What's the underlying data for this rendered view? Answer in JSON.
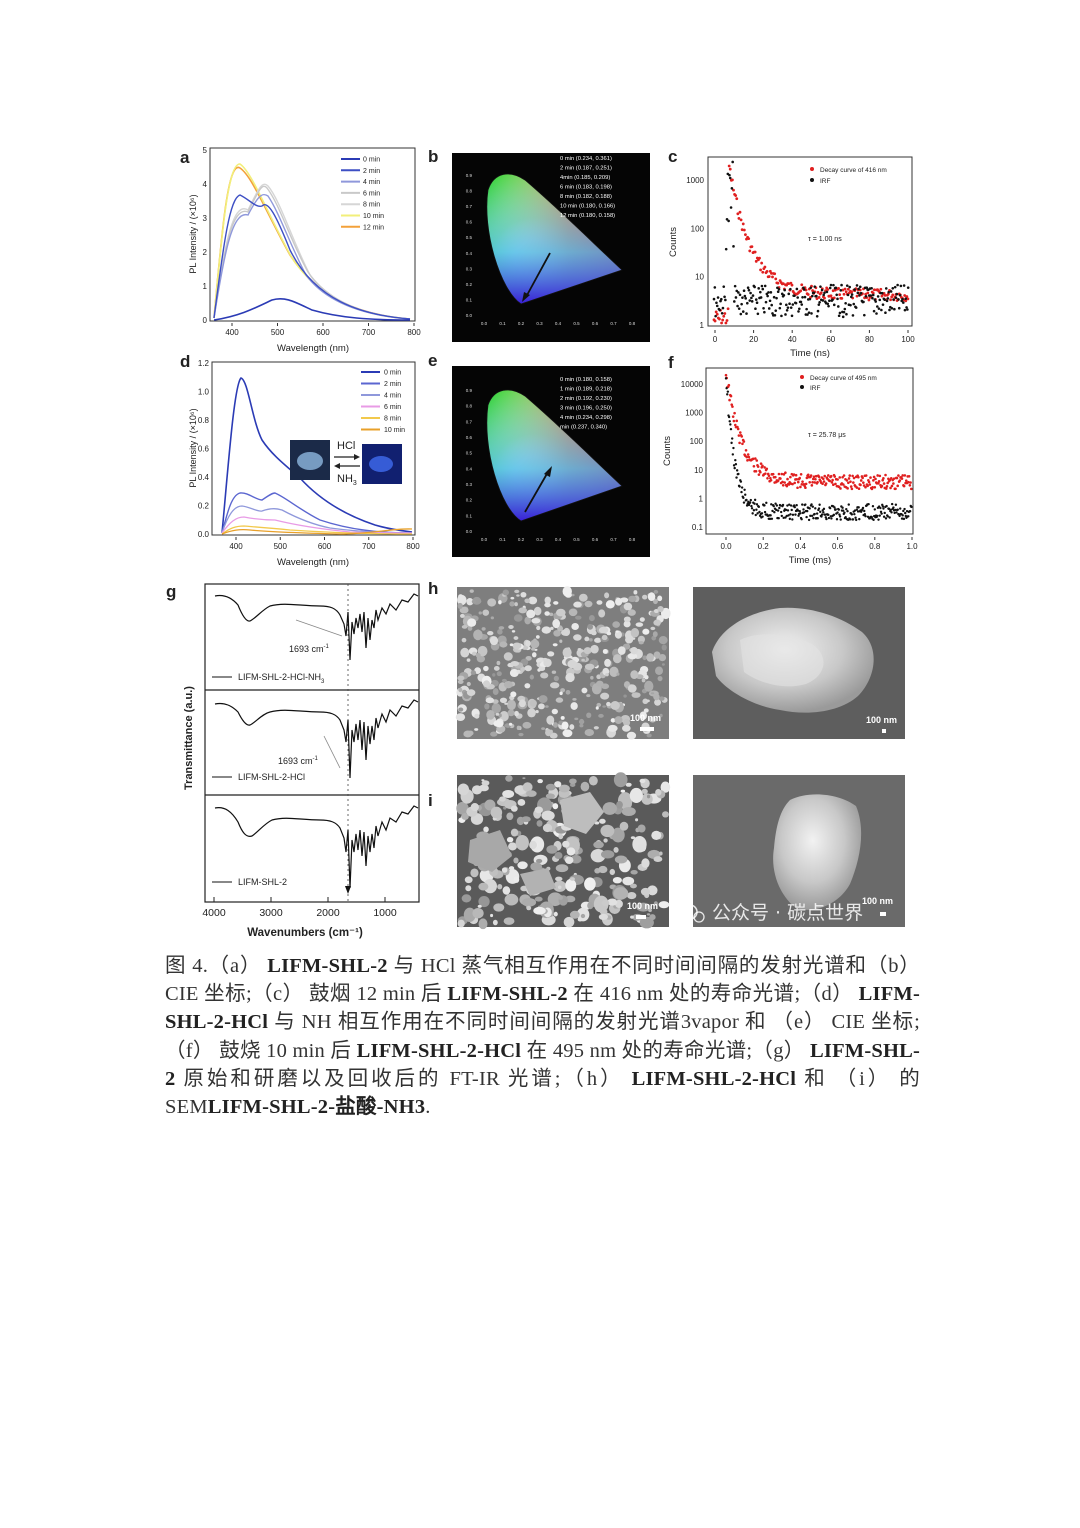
{
  "panels": {
    "a": {
      "letter": "a",
      "ylabel": "PL Intensity / (×10⁶)",
      "xlabel": "Wavelength (nm)",
      "xticks": [
        "400",
        "500",
        "600",
        "700",
        "800"
      ],
      "yticks": [
        "0",
        "1",
        "2",
        "3",
        "4",
        "5"
      ],
      "legend": [
        "0 min",
        "2 min",
        "4 min",
        "6 min",
        "8 min",
        "10 min",
        "12 min"
      ],
      "colors": [
        "#2b3bb5",
        "#3d4fc4",
        "#8f98db",
        "#c9c9c9",
        "#d6d6d6",
        "#f2ef7a",
        "#f3a13a"
      ]
    },
    "b": {
      "letter": "b",
      "legend": [
        "0 min   (0.234, 0.361)",
        "2 min   (0.187, 0.251)",
        "4min   (0.185, 0.209)",
        "6 min   (0.183, 0.198)",
        "8 min   (0.182, 0.188)",
        "10 min   (0.180, 0.166)",
        "12 min   (0.180, 0.158)"
      ],
      "ticks": [
        "0.0",
        "0.1",
        "0.2",
        "0.3",
        "0.4",
        "0.5",
        "0.6",
        "0.7",
        "0.8"
      ]
    },
    "c": {
      "letter": "c",
      "ylabel": "Counts",
      "xlabel": "Time (ns)",
      "xticks": [
        "0",
        "20",
        "40",
        "60",
        "80",
        "100"
      ],
      "yticks": [
        "1",
        "10",
        "100",
        "1000"
      ],
      "legend": [
        "Decay curve of 416 nm",
        "IRF"
      ],
      "tau": "τ = 1.00 ns"
    },
    "d": {
      "letter": "d",
      "ylabel": "PL Intensity / (×10⁶)",
      "xlabel": "Wavelength (nm)",
      "xticks": [
        "400",
        "500",
        "600",
        "700",
        "800"
      ],
      "yticks": [
        "0.0",
        "0.2",
        "0.4",
        "0.6",
        "0.8",
        "1.0",
        "1.2"
      ],
      "legend": [
        "0 min",
        "2 min",
        "4 min",
        "6 min",
        "8 min",
        "10 min"
      ],
      "colors": [
        "#2b3bb5",
        "#5b66d0",
        "#8f98db",
        "#e89be6",
        "#f2c94c",
        "#e8a02a"
      ],
      "hcl": "HCl",
      "nh3": "NH"
    },
    "e": {
      "letter": "e",
      "legend": [
        "0 min   (0.180, 0.158)",
        "1 min   (0.189, 0.218)",
        "2 min   (0.192, 0.230)",
        "3 min   (0.196, 0.250)",
        "4 min   (0.234, 0.298)",
        "min   (0.237, 0.340)"
      ],
      "ticks": [
        "0.0",
        "0.1",
        "0.2",
        "0.3",
        "0.4",
        "0.5",
        "0.6",
        "0.7",
        "0.8"
      ]
    },
    "f": {
      "letter": "f",
      "ylabel": "Counts",
      "xlabel": "Time (ms)",
      "xticks": [
        "0.0",
        "0.2",
        "0.4",
        "0.6",
        "0.8",
        "1.0"
      ],
      "yticks": [
        "0.1",
        "1",
        "10",
        "100",
        "1000",
        "10000"
      ],
      "legend": [
        "Decay curve of  495 nm",
        "IRF"
      ],
      "tau": "τ = 25.78 μs"
    },
    "g": {
      "letter": "g",
      "ylabel": "Transmittance (a.u.)",
      "xlabel": "Wavenumbers (cm⁻¹)",
      "xticks": [
        "4000",
        "3000",
        "2000",
        "1000"
      ],
      "labels": [
        "LIFM-SHL-2-HCl-NH",
        "LIFM-SHL-2-HCl",
        "LIFM-SHL-2"
      ],
      "peak": "1693 cm"
    },
    "h": {
      "letter": "h",
      "scale": "100 nm"
    },
    "i": {
      "letter": "i",
      "scale": "100 nm"
    }
  },
  "watermark": "公众号 · 碳点世界",
  "caption": {
    "p01": "图 4.（a） ",
    "p02": "LIFM-SHL-2",
    "p03": " 与 HCl 蒸气相互作用在不同时间间隔的发射光谱和（b） CIE 坐标;（c） 鼓烟 12 min 后 ",
    "p04": "LIFM-SHL-2",
    "p05": " 在 416 nm 处的寿命光谱;（d） ",
    "p06": "LIFM-SHL-2-HCl",
    "p07": " 与 NH 相互作用在不同时间间隔的发射光谱3vapor 和 （e） CIE 坐标;（f） 鼓烧 10 min 后 ",
    "p08": "LIFM-SHL-2-HCl",
    "p09": " 在 495 nm 处的寿命光谱;（g） ",
    "p10": "LIFM-SHL-2",
    "p11": " 原始和研磨以及回收后的 FT-IR 光谱;（h） ",
    "p12": "LIFM-SHL-2-HCl",
    "p13": " 和 （i） 的 SEM",
    "p14": "LIFM-SHL-2-盐酸-NH3",
    "p15": "."
  }
}
